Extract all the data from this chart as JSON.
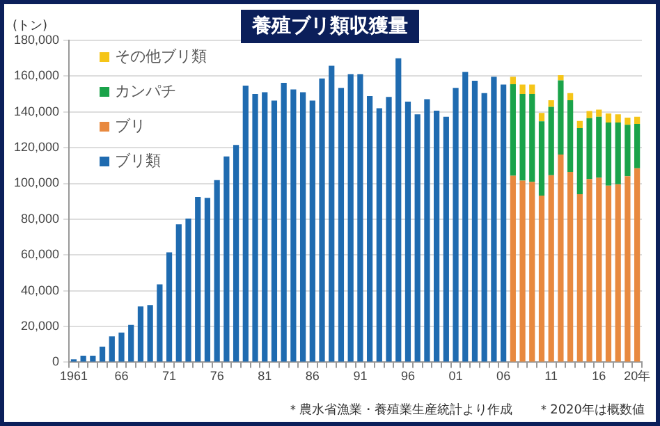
{
  "chart_data": {
    "type": "bar",
    "title": "養殖ブリ類収獲量",
    "ylabel": "(トン)",
    "categories": [
      "1961",
      null,
      null,
      null,
      null,
      "66",
      null,
      null,
      null,
      null,
      "71",
      null,
      null,
      null,
      null,
      "76",
      null,
      null,
      null,
      null,
      "81",
      null,
      null,
      null,
      null,
      "86",
      null,
      null,
      null,
      null,
      "91",
      null,
      null,
      null,
      null,
      "96",
      null,
      null,
      null,
      null,
      "01",
      null,
      null,
      null,
      null,
      "06",
      null,
      null,
      null,
      null,
      "11",
      null,
      null,
      null,
      null,
      "16",
      null,
      null,
      null,
      "20年"
    ],
    "series": [
      {
        "name": "ブリ類",
        "color": "#1f6bb0",
        "values": [
          1600,
          3700,
          3700,
          8700,
          14500,
          16600,
          20900,
          31200,
          32000,
          43600,
          61500,
          77100,
          80300,
          92400,
          91900,
          101900,
          115100,
          121500,
          154700,
          150000,
          151000,
          146300,
          156300,
          152600,
          151000,
          146300,
          158700,
          165800,
          153400,
          161100,
          161100,
          148900,
          142000,
          148400,
          170000,
          145700,
          138600,
          147100,
          140700,
          137300,
          153400,
          162400,
          157400,
          150500,
          159700,
          155300,
          null,
          null,
          null,
          null,
          null,
          null,
          null,
          null,
          null,
          null,
          null,
          null,
          null,
          null
        ]
      },
      {
        "name": "ブリ",
        "color": "#e8893f",
        "values": [
          null,
          null,
          null,
          null,
          null,
          null,
          null,
          null,
          null,
          null,
          null,
          null,
          null,
          null,
          null,
          null,
          null,
          null,
          null,
          null,
          null,
          null,
          null,
          null,
          null,
          null,
          null,
          null,
          null,
          null,
          null,
          null,
          null,
          null,
          null,
          null,
          null,
          null,
          null,
          null,
          null,
          null,
          null,
          null,
          null,
          null,
          104300,
          101600,
          100900,
          93200,
          104600,
          116200,
          106400,
          94000,
          102400,
          103200,
          98700,
          99500,
          104000,
          108500
        ]
      },
      {
        "name": "カンパチ",
        "color": "#1aa34a",
        "values": [
          null,
          null,
          null,
          null,
          null,
          null,
          null,
          null,
          null,
          null,
          null,
          null,
          null,
          null,
          null,
          null,
          null,
          null,
          null,
          null,
          null,
          null,
          null,
          null,
          null,
          null,
          null,
          null,
          null,
          null,
          null,
          null,
          null,
          null,
          null,
          null,
          null,
          null,
          null,
          null,
          null,
          null,
          null,
          null,
          null,
          null,
          51200,
          48400,
          49100,
          41500,
          38200,
          41400,
          40100,
          37000,
          34100,
          34100,
          35400,
          34600,
          28800,
          24800
        ]
      },
      {
        "name": "その他ブリ類",
        "color": "#f5c518",
        "values": [
          null,
          null,
          null,
          null,
          null,
          null,
          null,
          null,
          null,
          null,
          null,
          null,
          null,
          null,
          null,
          null,
          null,
          null,
          null,
          null,
          null,
          null,
          null,
          null,
          null,
          null,
          null,
          null,
          null,
          null,
          null,
          null,
          null,
          null,
          null,
          null,
          null,
          null,
          null,
          null,
          null,
          null,
          null,
          null,
          null,
          null,
          4200,
          5300,
          5300,
          4700,
          3700,
          2900,
          4000,
          3900,
          4000,
          4000,
          5000,
          4500,
          4000,
          4000
        ]
      }
    ],
    "stacked": true,
    "ylim": [
      0,
      180000
    ],
    "yticks": [
      0,
      {
        "value": 20000,
        "label": "20,000"
      },
      {
        "value": 40000,
        "label": "40,000"
      },
      {
        "value": 60000,
        "label": "60,000"
      },
      {
        "value": 80000,
        "label": "80,000"
      },
      {
        "value": 100000,
        "label": "100,000"
      },
      {
        "value": 120000,
        "label": "120,000"
      },
      {
        "value": 140000,
        "label": "140,000"
      },
      {
        "value": 160000,
        "label": "160,000"
      },
      {
        "value": 180000,
        "label": "180,000"
      }
    ],
    "grid": "y",
    "legend": "top left",
    "annotations": [
      "＊農水省漁業・養殖業生産統計より作成",
      "＊2020年は概数値"
    ]
  }
}
